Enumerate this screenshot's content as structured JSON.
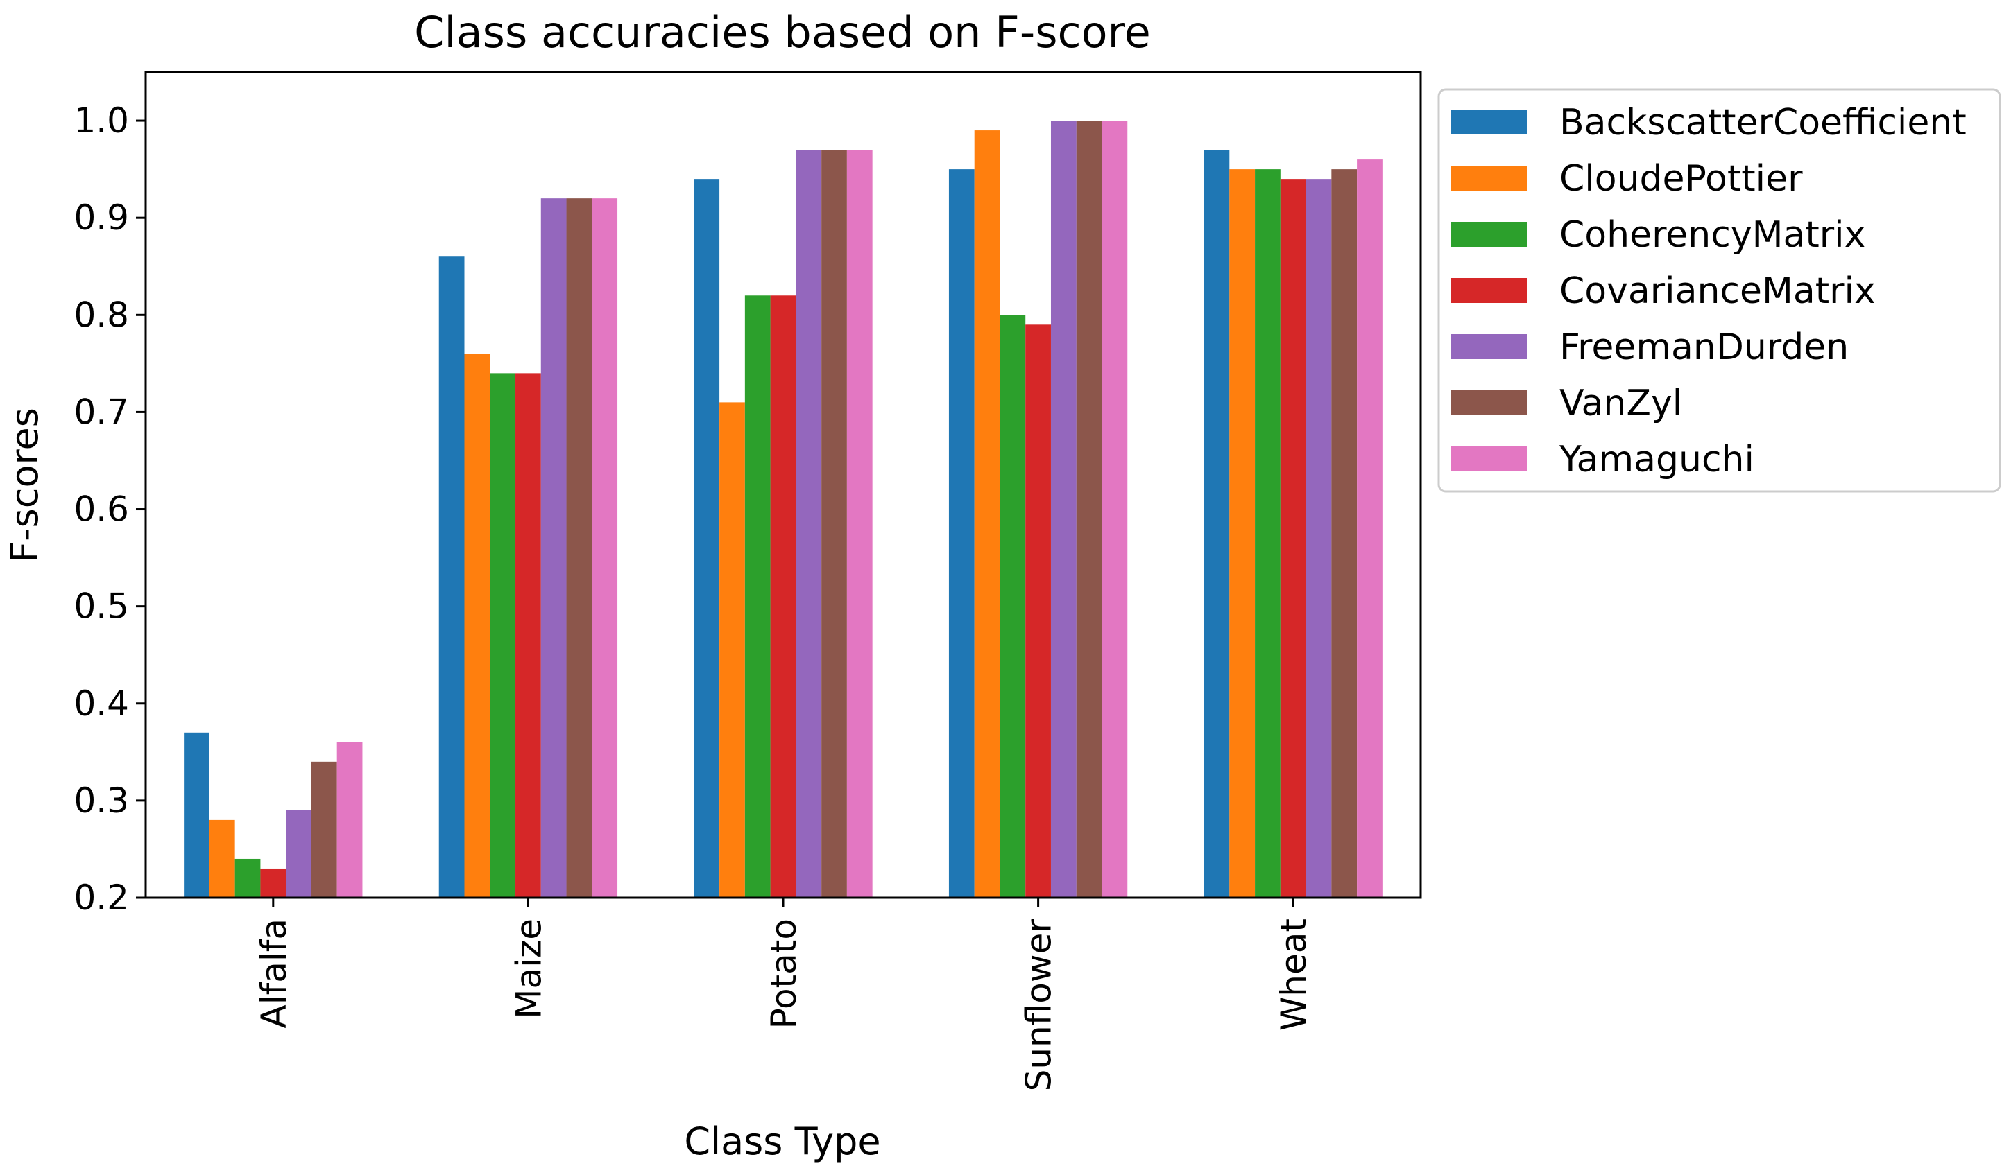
{
  "chart_data": {
    "type": "bar",
    "title": "Class accuracies based on F-score",
    "xlabel": "Class Type",
    "ylabel": "F-scores",
    "ylim": [
      0.2,
      1.05
    ],
    "yticks": [
      "0.2",
      "0.3",
      "0.4",
      "0.5",
      "0.6",
      "0.7",
      "0.8",
      "0.9",
      "1.0"
    ],
    "categories": [
      "Alfalfa",
      "Maize",
      "Potato",
      "Sunflower",
      "Wheat"
    ],
    "grid": false,
    "legend_position": "outside-right-top",
    "series": [
      {
        "name": "BackscatterCoefficient",
        "color": "#1f77b4",
        "values": [
          0.37,
          0.86,
          0.94,
          0.95,
          0.97
        ]
      },
      {
        "name": "CloudePottier",
        "color": "#ff7f0e",
        "values": [
          0.28,
          0.76,
          0.71,
          0.99,
          0.95
        ]
      },
      {
        "name": "CoherencyMatrix",
        "color": "#2ca02c",
        "values": [
          0.24,
          0.74,
          0.82,
          0.8,
          0.95
        ]
      },
      {
        "name": "CovarianceMatrix",
        "color": "#d62728",
        "values": [
          0.23,
          0.74,
          0.82,
          0.79,
          0.94
        ]
      },
      {
        "name": "FreemanDurden",
        "color": "#9467bd",
        "values": [
          0.29,
          0.92,
          0.97,
          1.0,
          0.94
        ]
      },
      {
        "name": "VanZyl",
        "color": "#8c564b",
        "values": [
          0.34,
          0.92,
          0.97,
          1.0,
          0.95
        ]
      },
      {
        "name": "Yamaguchi",
        "color": "#e377c2",
        "values": [
          0.36,
          0.92,
          0.97,
          1.0,
          0.96
        ]
      }
    ]
  }
}
